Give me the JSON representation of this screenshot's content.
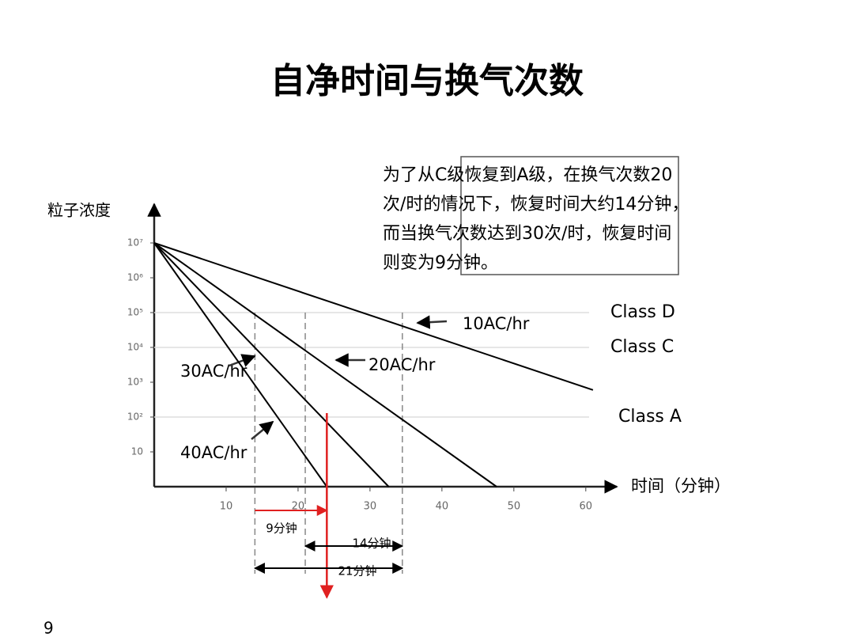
{
  "chart_data": {
    "type": "line",
    "title": "自净时间与换气次数",
    "y_label": "粒子浓度",
    "x_label": "时间（分钟）",
    "note": [
      "为了从C级恢复到A级，在换气次数20",
      "次/时的情况下，恢复时间大约14分钟，",
      "而当换气次数达到30次/时，恢复时间",
      "则变为9分钟。"
    ],
    "log_y": true,
    "xlim": [
      0,
      62
    ],
    "xticks": [
      10,
      20,
      30,
      40,
      50,
      60
    ],
    "ylim": [
      1,
      100000000
    ],
    "yticks": [
      {
        "value": 10000000,
        "label": "10⁷"
      },
      {
        "value": 1000000,
        "label": "10⁶"
      },
      {
        "value": 100000,
        "label": "10⁵"
      },
      {
        "value": 10000,
        "label": "10⁴"
      },
      {
        "value": 1000,
        "label": "10³"
      },
      {
        "value": 100,
        "label": "10²"
      },
      10
    ],
    "series": [
      {
        "name": "10AC/hr",
        "color": "#000000",
        "x": [
          0,
          61
        ],
        "values": [
          10000000,
          600
        ]
      },
      {
        "name": "20AC/hr",
        "color": "#000000",
        "x": [
          0,
          47.6
        ],
        "values": [
          10000000,
          1
        ]
      },
      {
        "name": "30AC/hr",
        "color": "#000000",
        "x": [
          0,
          32.6
        ],
        "values": [
          10000000,
          1
        ]
      },
      {
        "name": "40AC/hr",
        "color": "#000000",
        "x": [
          0,
          24
        ],
        "values": [
          10000000,
          1
        ]
      }
    ],
    "reference_lines": [
      {
        "label": "Class D",
        "value": 100000
      },
      {
        "label": "Class C",
        "value": 10000
      },
      {
        "label": "Class A",
        "value": 100
      }
    ],
    "time_markers": [
      14,
      21,
      34.5
    ],
    "red_marker": 24,
    "intervals": [
      {
        "label": "9分钟",
        "from": 14,
        "to": 24,
        "color": "#e02020"
      },
      {
        "label": "14分钟",
        "from": 21,
        "to": 34.5,
        "color": "#000000"
      },
      {
        "label": "21分钟",
        "from": 14,
        "to": 34.5,
        "color": "#000000"
      }
    ],
    "page_number": "9"
  }
}
